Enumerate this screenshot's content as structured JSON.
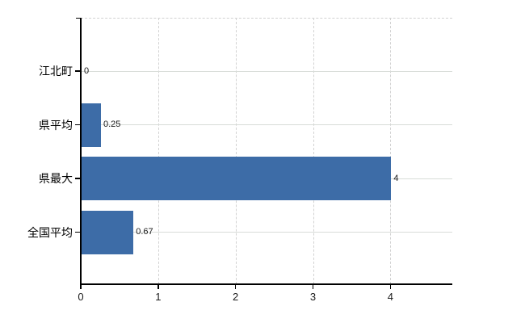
{
  "chart_data": {
    "type": "bar",
    "orientation": "horizontal",
    "title": "",
    "categories": [
      "江北町",
      "県平均",
      "県最大",
      "全国平均"
    ],
    "values": [
      0,
      0.25,
      4,
      0.67
    ],
    "value_labels": [
      "0",
      "0.25",
      "4",
      "0.67"
    ],
    "x_tick_labels": [
      "0",
      "1",
      "2",
      "3",
      "4"
    ],
    "x_tick_values": [
      0,
      1,
      2,
      3,
      4
    ],
    "xlim": [
      0,
      4.8
    ],
    "grid": "on",
    "legend_position": "none",
    "colors": {
      "bar": "#3d6ca7",
      "grid_horizontal": "#d8dcd8",
      "grid_vertical": "#d2d2d2",
      "axis": "#000000",
      "text": "#000000",
      "background": "#ffffff"
    }
  }
}
